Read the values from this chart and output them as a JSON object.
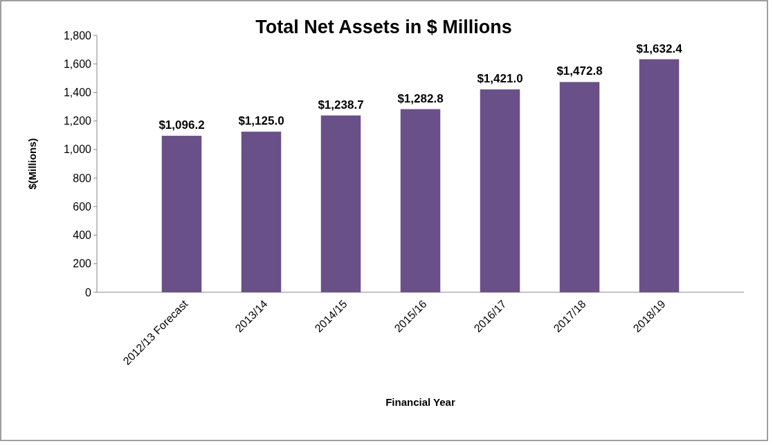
{
  "chart_data": {
    "type": "bar",
    "title": "Total Net Assets in $ Millions",
    "xlabel": "Financial Year",
    "ylabel": "$(Millions)",
    "categories": [
      "2012/13 Forecast",
      "2013/14",
      "2014/15",
      "2015/16",
      "2016/17",
      "2017/18",
      "2018/19"
    ],
    "values": [
      1096.2,
      1125.0,
      1238.7,
      1282.8,
      1421.0,
      1472.8,
      1632.4
    ],
    "value_labels": [
      "$1,096.2",
      "$1,125.0",
      "$1,238.7",
      "$1,282.8",
      "$1,421.0",
      "$1,472.8",
      "$1,632.4"
    ],
    "color": "#6a5088",
    "ylim": [
      0,
      1800
    ],
    "yticks": [
      0,
      200,
      400,
      600,
      800,
      {
        "value": 1000,
        "label": "1,000"
      },
      {
        "value": 1200,
        "label": "1,200"
      },
      {
        "value": 1400,
        "label": "1,400"
      },
      {
        "value": 1600,
        "label": "1,600"
      },
      {
        "value": 1800,
        "label": "1,800"
      }
    ],
    "grid": false
  }
}
